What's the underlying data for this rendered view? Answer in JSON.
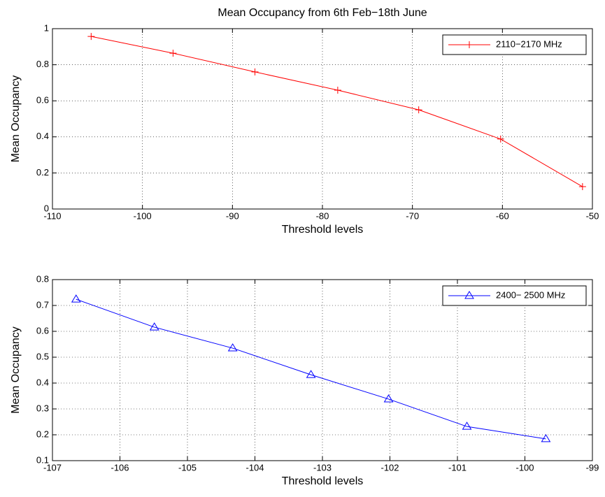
{
  "chart_data": [
    {
      "type": "line",
      "title": "Mean Occupancy from 6th Feb−18th June",
      "xlabel": "Threshold levels",
      "ylabel": "Mean Occupancy",
      "x": [
        -105.7,
        -96.6,
        -87.5,
        -78.3,
        -69.3,
        -60.2,
        -51.1
      ],
      "series": [
        {
          "name": "2110−2170 MHz",
          "color": "#ff0000",
          "marker": "plus",
          "values": [
            0.957,
            0.864,
            0.76,
            0.659,
            0.55,
            0.388,
            0.124
          ]
        }
      ],
      "xlim": [
        -110,
        -50
      ],
      "ylim": [
        0,
        1
      ],
      "xticks": [
        -110,
        -100,
        -90,
        -80,
        -70,
        -60,
        -50
      ],
      "yticks": [
        0,
        0.2,
        0.4,
        0.6,
        0.8,
        1
      ],
      "grid": true,
      "legend": "upper right"
    },
    {
      "type": "line",
      "xlabel": "Threshold levels",
      "ylabel": "Mean Occupancy",
      "x": [
        -106.65,
        -105.49,
        -104.33,
        -103.17,
        -102.02,
        -100.86,
        -99.69
      ],
      "series": [
        {
          "name": "2400− 2500 MHz",
          "color": "#0000ff",
          "marker": "triangle",
          "values": [
            0.724,
            0.616,
            0.535,
            0.432,
            0.338,
            0.232,
            0.184
          ]
        }
      ],
      "xlim": [
        -107,
        -99
      ],
      "ylim": [
        0.1,
        0.8
      ],
      "xticks": [
        -107,
        -106,
        -105,
        -104,
        -103,
        -102,
        -101,
        -100,
        -99
      ],
      "yticks": [
        0.1,
        0.2,
        0.3,
        0.4,
        0.5,
        0.6,
        0.7,
        0.8
      ],
      "grid": true,
      "legend": "upper right"
    }
  ]
}
